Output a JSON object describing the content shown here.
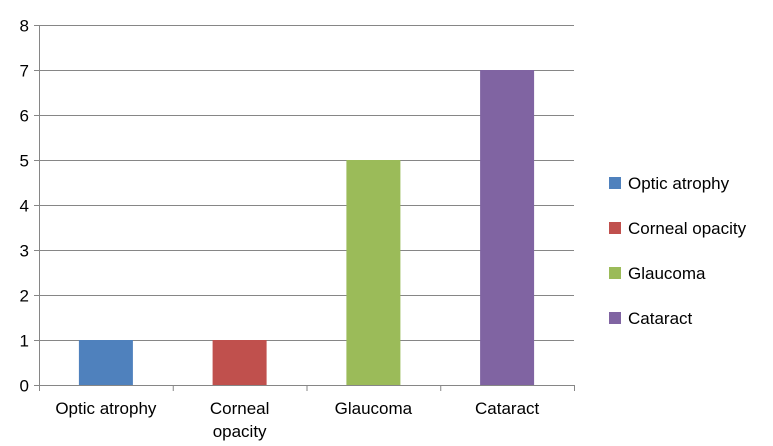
{
  "chart_data": {
    "type": "bar",
    "categories": [
      "Optic atrophy",
      "Corneal opacity",
      "Glaucoma",
      "Cataract"
    ],
    "values": [
      1,
      1,
      5,
      7
    ],
    "colors": [
      "#4F81BD",
      "#C0504D",
      "#9BBB59",
      "#8064A2"
    ],
    "ylim": [
      0,
      8
    ],
    "yticks": [
      0,
      1,
      2,
      3,
      4,
      5,
      6,
      7,
      8
    ],
    "grid": true,
    "legend_position": "right",
    "legend": [
      "Optic atrophy",
      "Corneal opacity",
      "Glaucoma",
      "Cataract"
    ]
  }
}
